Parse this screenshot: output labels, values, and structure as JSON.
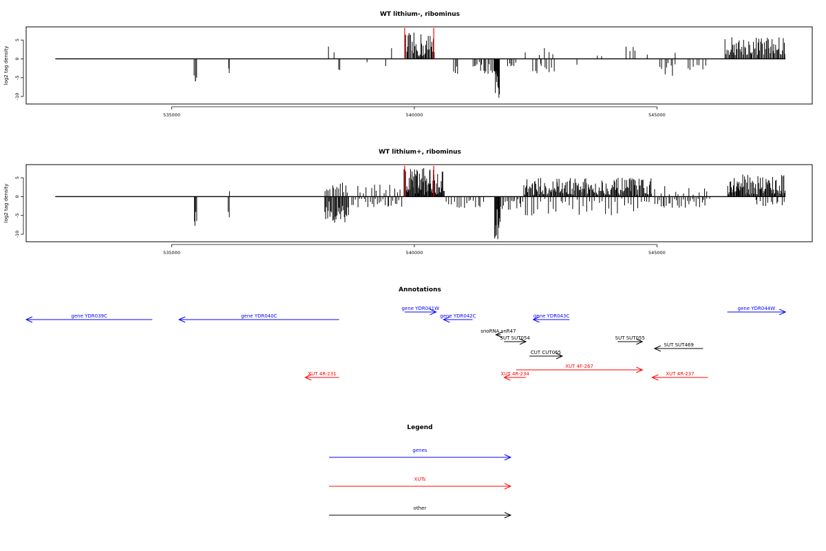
{
  "chart_data": [
    {
      "type": "bar",
      "title": "WT lithium-, ribominus",
      "xlabel": "",
      "ylabel": "log2 tag density",
      "xlim": [
        532000,
        548200
      ],
      "ylim": [
        -12,
        8.5
      ],
      "xticks": [
        535000,
        540000,
        545000
      ],
      "xtick_labels": [
        "535000",
        "540000",
        "545000"
      ],
      "yticks": [
        5,
        0,
        -5,
        -10
      ],
      "ytick_labels": [
        "5",
        "0",
        "-5",
        "-10"
      ],
      "grid": false,
      "baseline_range": [
        532600,
        547650
      ],
      "red_markers": [
        539800,
        540400
      ],
      "clusters": [
        {
          "start": 535460,
          "end": 535520,
          "n": 4,
          "min": -6.0,
          "max": -4.0
        },
        {
          "start": 536160,
          "end": 536200,
          "n": 2,
          "min": -4.0,
          "max": -2.0
        },
        {
          "start": 538200,
          "end": 538260,
          "n": 1,
          "min": 3.0,
          "max": 4.5
        },
        {
          "start": 538330,
          "end": 538360,
          "n": 1,
          "min": 1.0,
          "max": 2.0
        },
        {
          "start": 538400,
          "end": 538500,
          "n": 2,
          "min": -3.0,
          "max": -1.0
        },
        {
          "start": 539000,
          "end": 539050,
          "n": 1,
          "min": -1.0,
          "max": -0.5
        },
        {
          "start": 539380,
          "end": 539440,
          "n": 1,
          "min": -2.0,
          "max": -1.0
        },
        {
          "start": 539500,
          "end": 539560,
          "n": 1,
          "min": 2.0,
          "max": 3.0
        },
        {
          "start": 539800,
          "end": 540420,
          "n": 36,
          "min": 0.5,
          "max": 7.0
        },
        {
          "start": 540800,
          "end": 540920,
          "n": 4,
          "min": -4.0,
          "max": -1.0
        },
        {
          "start": 541200,
          "end": 541620,
          "n": 14,
          "min": -4.0,
          "max": -0.5
        },
        {
          "start": 541640,
          "end": 541760,
          "n": 14,
          "min": -11.0,
          "max": -2.0
        },
        {
          "start": 541900,
          "end": 542120,
          "n": 6,
          "min": -2.0,
          "max": -0.5
        },
        {
          "start": 542250,
          "end": 542320,
          "n": 1,
          "min": 1.5,
          "max": 2.5
        },
        {
          "start": 542420,
          "end": 542900,
          "n": 10,
          "min": -4.0,
          "max": -1.0
        },
        {
          "start": 542520,
          "end": 542900,
          "n": 4,
          "min": 1.0,
          "max": 3.5
        },
        {
          "start": 543300,
          "end": 543400,
          "n": 1,
          "min": -2.0,
          "max": -1.0
        },
        {
          "start": 543700,
          "end": 543900,
          "n": 2,
          "min": 0.5,
          "max": 1.5
        },
        {
          "start": 544350,
          "end": 544600,
          "n": 4,
          "min": 1.0,
          "max": 3.5
        },
        {
          "start": 544780,
          "end": 544820,
          "n": 1,
          "min": 1.0,
          "max": 2.0
        },
        {
          "start": 545050,
          "end": 545400,
          "n": 8,
          "min": -4.5,
          "max": -1.0
        },
        {
          "start": 545350,
          "end": 545400,
          "n": 1,
          "min": 1.0,
          "max": 2.5
        },
        {
          "start": 545600,
          "end": 546050,
          "n": 7,
          "min": -3.0,
          "max": -1.0
        },
        {
          "start": 546400,
          "end": 547650,
          "n": 65,
          "min": 1.0,
          "max": 6.0
        }
      ]
    },
    {
      "type": "bar",
      "title": "WT lithium+, ribominus",
      "xlabel": "",
      "ylabel": "log2 tag density",
      "xlim": [
        532000,
        548200
      ],
      "ylim": [
        -12,
        8.5
      ],
      "xticks": [
        535000,
        540000,
        545000
      ],
      "xtick_labels": [
        "535000",
        "540000",
        "545000"
      ],
      "yticks": [
        5,
        0,
        -5,
        -10
      ],
      "ytick_labels": [
        "5",
        "0",
        "-5",
        "-10"
      ],
      "grid": false,
      "baseline_range": [
        532600,
        547650
      ],
      "red_markers": [
        539800,
        540400
      ],
      "clusters": [
        {
          "start": 535460,
          "end": 535520,
          "n": 4,
          "min": -8.0,
          "max": -4.0
        },
        {
          "start": 536160,
          "end": 536200,
          "n": 2,
          "min": -6.0,
          "max": -2.0
        },
        {
          "start": 536180,
          "end": 536200,
          "n": 1,
          "min": 1.0,
          "max": 2.0
        },
        {
          "start": 538150,
          "end": 538650,
          "n": 28,
          "min": -7.0,
          "max": -1.0
        },
        {
          "start": 538150,
          "end": 538650,
          "n": 14,
          "min": 1.0,
          "max": 4.5
        },
        {
          "start": 538700,
          "end": 539750,
          "n": 26,
          "min": -3.0,
          "max": -0.5
        },
        {
          "start": 538800,
          "end": 539750,
          "n": 14,
          "min": 0.5,
          "max": 3.5
        },
        {
          "start": 539780,
          "end": 540620,
          "n": 70,
          "min": 0.5,
          "max": 8.0
        },
        {
          "start": 540650,
          "end": 541450,
          "n": 16,
          "min": -3.0,
          "max": -0.5
        },
        {
          "start": 541650,
          "end": 541780,
          "n": 14,
          "min": -11.5,
          "max": -2.0
        },
        {
          "start": 541800,
          "end": 542250,
          "n": 14,
          "min": -3.5,
          "max": -0.5
        },
        {
          "start": 542250,
          "end": 544900,
          "n": 160,
          "min": 0.5,
          "max": 5.0
        },
        {
          "start": 542250,
          "end": 544900,
          "n": 40,
          "min": -5.0,
          "max": -0.5
        },
        {
          "start": 544950,
          "end": 546100,
          "n": 30,
          "min": -3.0,
          "max": -0.5
        },
        {
          "start": 544950,
          "end": 546100,
          "n": 12,
          "min": 0.5,
          "max": 3.0
        },
        {
          "start": 546450,
          "end": 547650,
          "n": 80,
          "min": 0.5,
          "max": 6.0
        },
        {
          "start": 547000,
          "end": 547650,
          "n": 12,
          "min": -2.5,
          "max": -0.5
        }
      ]
    }
  ],
  "annotations": {
    "title": "Annotations",
    "xlim": [
      532000,
      548200
    ],
    "features": [
      {
        "label": "gene YDR039C",
        "start": 532000,
        "end": 534600,
        "strand": "-",
        "row": 1,
        "category": "gene"
      },
      {
        "label": "gene YDR040C",
        "start": 535150,
        "end": 538450,
        "strand": "-",
        "row": 1,
        "category": "gene"
      },
      {
        "label": "gene YDR041W",
        "start": 539800,
        "end": 540450,
        "strand": "+",
        "row": 0,
        "category": "gene"
      },
      {
        "label": "gene YDR042C",
        "start": 540600,
        "end": 541200,
        "strand": "-",
        "row": 1,
        "category": "gene"
      },
      {
        "label": "gene YDR043C",
        "start": 542450,
        "end": 543200,
        "strand": "-",
        "row": 1,
        "category": "gene"
      },
      {
        "label": "gene YDR044W",
        "start": 546450,
        "end": 547650,
        "strand": "+",
        "row": 0,
        "category": "gene"
      },
      {
        "label": "snoRNA snR47",
        "start": 541680,
        "end": 541780,
        "strand": "-",
        "row": 2,
        "category": "other"
      },
      {
        "label": "SUT SUT054",
        "start": 541850,
        "end": 542300,
        "strand": "+",
        "row": 3,
        "category": "other"
      },
      {
        "label": "SUT SUT055",
        "start": 544190,
        "end": 544700,
        "strand": "+",
        "row": 3,
        "category": "other"
      },
      {
        "label": "SUT SUT469",
        "start": 544950,
        "end": 545950,
        "strand": "-",
        "row": 4,
        "category": "other"
      },
      {
        "label": "CUT CUT065",
        "start": 542370,
        "end": 543050,
        "strand": "+",
        "row": 5,
        "category": "other"
      },
      {
        "label": "XUT 4F-267",
        "start": 542100,
        "end": 544700,
        "strand": "+",
        "row": 6,
        "category": "xut"
      },
      {
        "label": "XUT 4R-231",
        "start": 537750,
        "end": 538450,
        "strand": "-",
        "row": 7,
        "category": "xut"
      },
      {
        "label": "XUT 4R-234",
        "start": 541850,
        "end": 542300,
        "strand": "-",
        "row": 7,
        "category": "xut"
      },
      {
        "label": "XUT 4R-237",
        "start": 544900,
        "end": 546050,
        "strand": "-",
        "row": 7,
        "category": "xut"
      }
    ]
  },
  "legend": {
    "title": "Legend",
    "items": [
      {
        "label": "genes",
        "category": "gene"
      },
      {
        "label": "XUTs",
        "category": "xut"
      },
      {
        "label": "other",
        "category": "other"
      }
    ]
  },
  "colors": {
    "gene": "#0000ff",
    "xut": "#ff0000",
    "other": "#000000",
    "bars": "#000000",
    "marker": "#ff0000"
  }
}
